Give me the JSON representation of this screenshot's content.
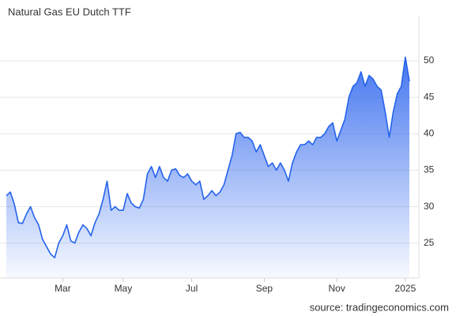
{
  "chart_data": {
    "type": "area",
    "title": "Natural Gas EU Dutch TTF",
    "source": "source: tradingeconomics.com",
    "color": "#2563eb",
    "grid": true,
    "categories": [
      null,
      null,
      null,
      null,
      null,
      null,
      null,
      null,
      null,
      null,
      null,
      null,
      null,
      null,
      "Mar",
      null,
      null,
      null,
      null,
      null,
      null,
      null,
      null,
      null,
      null,
      null,
      null,
      null,
      null,
      "May",
      null,
      null,
      null,
      null,
      null,
      null,
      null,
      null,
      null,
      null,
      null,
      null,
      null,
      null,
      null,
      null,
      "Jul",
      null,
      null,
      null,
      null,
      null,
      null,
      null,
      null,
      null,
      null,
      null,
      null,
      null,
      null,
      null,
      null,
      null,
      "Sep",
      null,
      null,
      null,
      null,
      null,
      null,
      null,
      null,
      null,
      null,
      null,
      null,
      null,
      null,
      null,
      null,
      null,
      "Nov",
      null,
      null,
      null,
      null,
      null,
      null,
      null,
      null,
      null,
      null,
      null,
      null,
      null,
      null,
      null,
      null,
      "2025",
      null
    ],
    "values": [
      31.5,
      32.0,
      30.3,
      27.8,
      27.7,
      29.0,
      30.0,
      28.5,
      27.5,
      25.5,
      24.5,
      23.5,
      23.0,
      25.0,
      26.0,
      27.5,
      25.3,
      25.0,
      26.5,
      27.5,
      27.0,
      26.0,
      27.8,
      29.0,
      31.0,
      33.5,
      29.5,
      30.0,
      29.5,
      29.5,
      31.8,
      30.5,
      30.0,
      29.8,
      31.0,
      34.5,
      35.5,
      34.0,
      35.5,
      34.0,
      33.5,
      35.0,
      35.2,
      34.3,
      34.0,
      34.5,
      33.5,
      33.0,
      33.5,
      31.0,
      31.5,
      32.2,
      31.5,
      32.0,
      33.0,
      35.0,
      37.0,
      40.0,
      40.2,
      39.5,
      39.5,
      39.0,
      37.5,
      38.5,
      37.0,
      35.5,
      36.0,
      35.0,
      36.0,
      35.0,
      33.5,
      36.0,
      37.5,
      38.5,
      38.5,
      39.0,
      38.5,
      39.5,
      39.5,
      40.0,
      41.0,
      41.5,
      39.0,
      40.5,
      42.0,
      45.0,
      46.5,
      47.0,
      48.5,
      46.5,
      48.0,
      47.5,
      46.5,
      46.0,
      43.0,
      39.5,
      43.0,
      45.5,
      46.5,
      50.5,
      47.2
    ],
    "ylim": [
      20.2,
      55.1
    ],
    "yticks": [
      25,
      30,
      35,
      40,
      45,
      50
    ]
  }
}
